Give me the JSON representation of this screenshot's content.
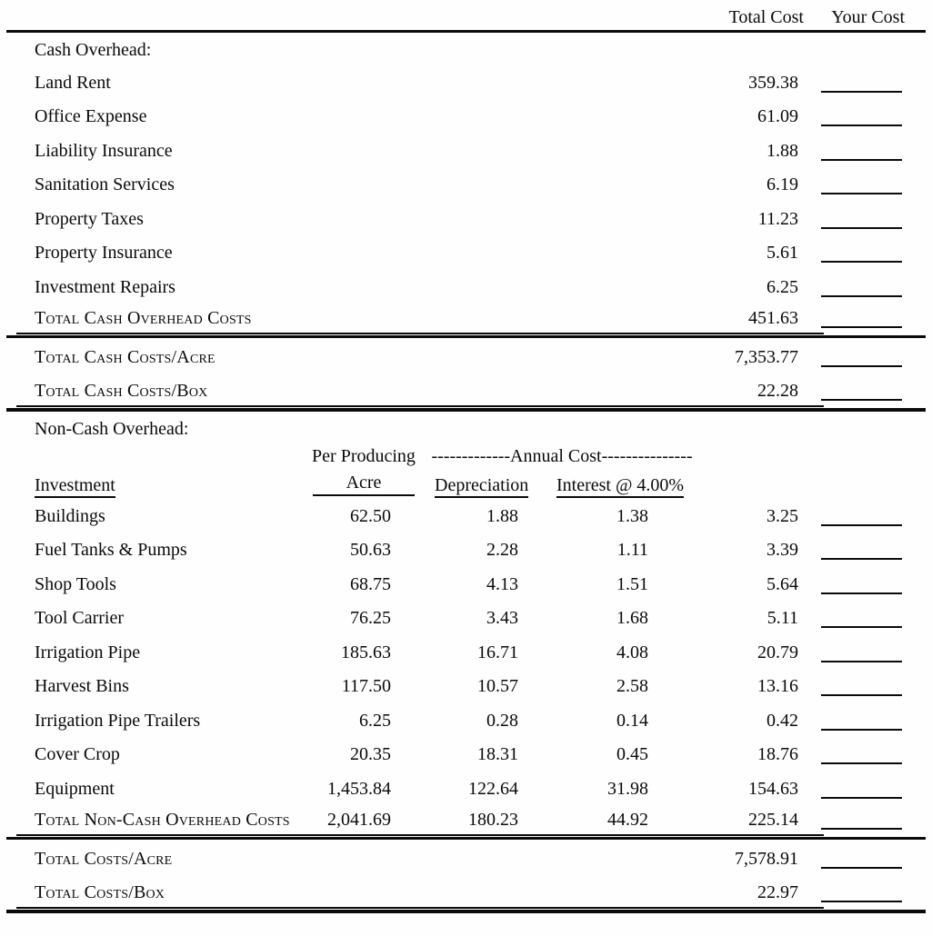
{
  "header": {
    "total_cost": "Total Cost",
    "your_cost": "Your Cost"
  },
  "cash_overhead": {
    "section_label": "Cash Overhead:",
    "rows": [
      {
        "label": "Land Rent",
        "total": "359.38"
      },
      {
        "label": "Office Expense",
        "total": "61.09"
      },
      {
        "label": "Liability Insurance",
        "total": "1.88"
      },
      {
        "label": "Sanitation Services",
        "total": "6.19"
      },
      {
        "label": "Property Taxes",
        "total": "11.23"
      },
      {
        "label": "Property Insurance",
        "total": "5.61"
      },
      {
        "label": "Investment Repairs",
        "total": "6.25"
      }
    ],
    "total_row": {
      "label": "Total Cash Overhead Costs",
      "total": "451.63"
    }
  },
  "cash_totals": {
    "acre": {
      "label": "Total Cash Costs/Acre",
      "total": "7,353.77"
    },
    "box": {
      "label": "Total Cash Costs/Box",
      "total": "22.28"
    }
  },
  "non_cash_overhead": {
    "section_label": "Non-Cash Overhead:",
    "headers": {
      "investment": "Investment",
      "per_producing": "Per Producing",
      "acre": "Acre",
      "annual_cost": "-------------Annual Cost---------------",
      "depreciation": "Depreciation",
      "interest": "Interest @ 4.00%"
    },
    "rows": [
      {
        "label": "Buildings",
        "acre": "62.50",
        "depreciation": "1.88",
        "interest": "1.38",
        "total": "3.25"
      },
      {
        "label": "Fuel Tanks & Pumps",
        "acre": "50.63",
        "depreciation": "2.28",
        "interest": "1.11",
        "total": "3.39"
      },
      {
        "label": "Shop Tools",
        "acre": "68.75",
        "depreciation": "4.13",
        "interest": "1.51",
        "total": "5.64"
      },
      {
        "label": "Tool Carrier",
        "acre": "76.25",
        "depreciation": "3.43",
        "interest": "1.68",
        "total": "5.11"
      },
      {
        "label": "Irrigation Pipe",
        "acre": "185.63",
        "depreciation": "16.71",
        "interest": "4.08",
        "total": "20.79"
      },
      {
        "label": "Harvest Bins",
        "acre": "117.50",
        "depreciation": "10.57",
        "interest": "2.58",
        "total": "13.16"
      },
      {
        "label": "Irrigation Pipe Trailers",
        "acre": "6.25",
        "depreciation": "0.28",
        "interest": "0.14",
        "total": "0.42"
      },
      {
        "label": "Cover Crop",
        "acre": "20.35",
        "depreciation": "18.31",
        "interest": "0.45",
        "total": "18.76"
      },
      {
        "label": "Equipment",
        "acre": "1,453.84",
        "depreciation": "122.64",
        "interest": "31.98",
        "total": "154.63"
      }
    ],
    "total_row": {
      "label": "Total Non-Cash Overhead Costs",
      "acre": "2,041.69",
      "depreciation": "180.23",
      "interest": "44.92",
      "total": "225.14"
    }
  },
  "grand_totals": {
    "acre": {
      "label": "Total Costs/Acre",
      "total": "7,578.91"
    },
    "box": {
      "label": "Total Costs/Box",
      "total": "22.97"
    }
  }
}
